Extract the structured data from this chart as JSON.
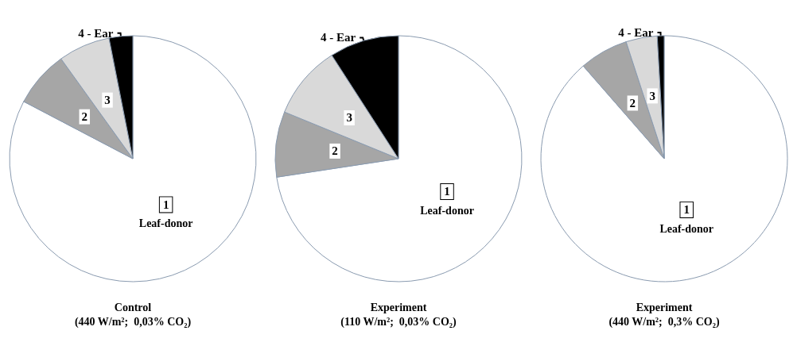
{
  "chart_data": [
    {
      "type": "pie",
      "title": "Control",
      "subtitle": "(440 W/m²;  0,03% CO₂)",
      "categories": [
        "1\nLeaf-donor",
        "2",
        "3",
        "4 - Ear"
      ],
      "values": [
        82.7,
        7.4,
        6.8,
        3.1
      ],
      "colors": [
        "#ffffff",
        "#a6a6a6",
        "#d9d9d9",
        "#000000"
      ]
    },
    {
      "type": "pie",
      "title": "Experiment",
      "subtitle": "(110 W/m²;  0,03% CO₂)",
      "categories": [
        "1\nLeaf-donor",
        "2",
        "3",
        "4 - Ear"
      ],
      "values": [
        72.6,
        8.6,
        9.7,
        9.1
      ],
      "colors": [
        "#ffffff",
        "#a6a6a6",
        "#d9d9d9",
        "#000000"
      ]
    },
    {
      "type": "pie",
      "title": "Experiment",
      "subtitle": "(440 W/m²;  0,3% CO₂)",
      "categories": [
        "1\nLeaf-donor",
        "2",
        "3",
        "4 - Ear"
      ],
      "values": [
        88.6,
        6.4,
        4.1,
        0.9
      ],
      "colors": [
        "#ffffff",
        "#a6a6a6",
        "#d9d9d9",
        "#000000"
      ]
    }
  ]
}
